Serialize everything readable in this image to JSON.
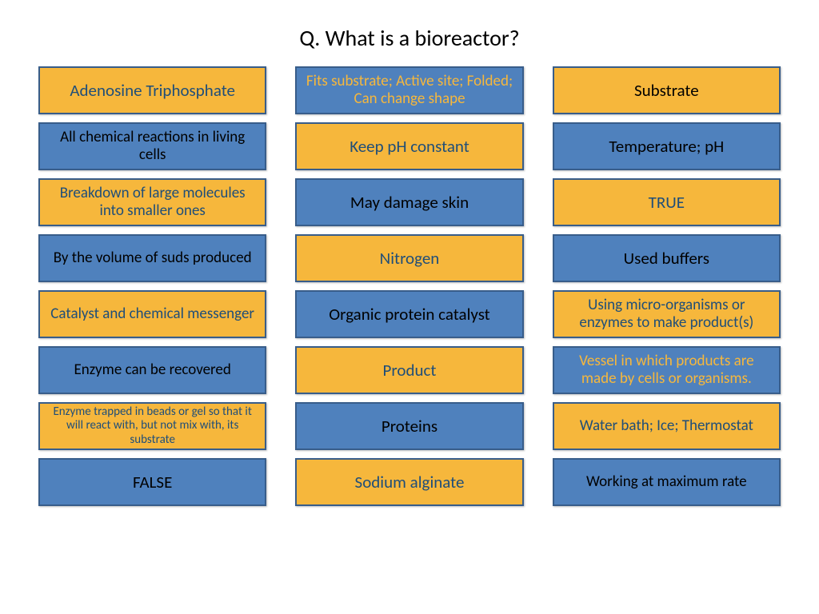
{
  "title": "Q. What is a bioreactor?",
  "colors": {
    "yellow_fill": "#f6b73c",
    "yellow_border": "#385d8a",
    "yellow_text": "#000000",
    "blue_fill": "#4f81bd",
    "blue_border": "#385d8a",
    "blue_text_on_yellow": "#1f4e79",
    "yellow_text_on_blue": "#f6b73c",
    "black_text_on_blue": "#000000"
  },
  "columns": [
    [
      {
        "text": "Adenosine Triphosphate",
        "bg": "yellow",
        "fg": "blueText",
        "size": "lg"
      },
      {
        "text": "All chemical reactions in living cells",
        "bg": "blue",
        "fg": "black",
        "size": "md"
      },
      {
        "text": "Breakdown of large molecules into smaller ones",
        "bg": "yellow",
        "fg": "blueText",
        "size": "md"
      },
      {
        "text": "By the volume of suds produced",
        "bg": "blue",
        "fg": "black",
        "size": "md"
      },
      {
        "text": "Catalyst and chemical messenger",
        "bg": "yellow",
        "fg": "blueText",
        "size": "md"
      },
      {
        "text": "Enzyme can be recovered",
        "bg": "blue",
        "fg": "black",
        "size": "md"
      },
      {
        "text": "Enzyme trapped in beads or gel so that it will react with, but not mix with, its substrate",
        "bg": "yellow",
        "fg": "blueText",
        "size": "sm"
      },
      {
        "text": "FALSE",
        "bg": "blue",
        "fg": "black",
        "size": "lg"
      }
    ],
    [
      {
        "text": "Fits substrate; Active site; Folded; Can change shape",
        "bg": "blue",
        "fg": "yellow",
        "size": "md"
      },
      {
        "text": "Keep pH constant",
        "bg": "yellow",
        "fg": "blueText",
        "size": "lg"
      },
      {
        "text": "May damage skin",
        "bg": "blue",
        "fg": "black",
        "size": "lg"
      },
      {
        "text": "Nitrogen",
        "bg": "yellow",
        "fg": "blueText",
        "size": "lg"
      },
      {
        "text": "Organic protein catalyst",
        "bg": "blue",
        "fg": "black",
        "size": "lg"
      },
      {
        "text": "Product",
        "bg": "yellow",
        "fg": "blueText",
        "size": "lg"
      },
      {
        "text": "Proteins",
        "bg": "blue",
        "fg": "black",
        "size": "lg"
      },
      {
        "text": "Sodium alginate",
        "bg": "yellow",
        "fg": "blueText",
        "size": "lg"
      }
    ],
    [
      {
        "text": "Substrate",
        "bg": "yellow",
        "fg": "black",
        "size": "lg"
      },
      {
        "text": "Temperature; pH",
        "bg": "blue",
        "fg": "black",
        "size": "lg"
      },
      {
        "text": "TRUE",
        "bg": "yellow",
        "fg": "blueText",
        "size": "lg"
      },
      {
        "text": "Used buffers",
        "bg": "blue",
        "fg": "black",
        "size": "lg"
      },
      {
        "text": "Using micro-organisms or enzymes to make product(s)",
        "bg": "yellow",
        "fg": "blueText",
        "size": "md"
      },
      {
        "text": "Vessel in which products are made by cells or organisms.",
        "bg": "blue",
        "fg": "yellow",
        "size": "md"
      },
      {
        "text": "Water bath; Ice; Thermostat",
        "bg": "yellow",
        "fg": "blueText",
        "size": "md"
      },
      {
        "text": "Working at maximum rate",
        "bg": "blue",
        "fg": "black",
        "size": "md"
      }
    ]
  ]
}
